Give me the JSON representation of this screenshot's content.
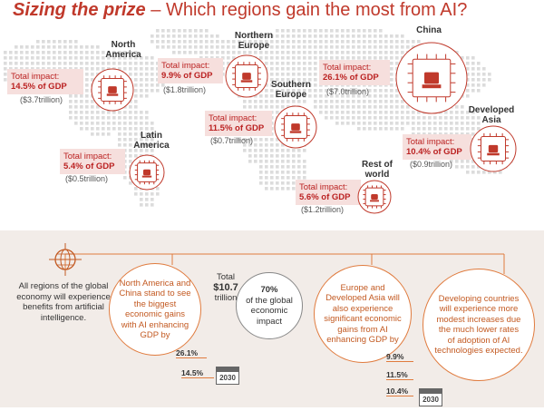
{
  "title": {
    "bold": "Sizing the prize",
    "dash": " – ",
    "rest": "Which regions gain the most from AI?"
  },
  "regions": {
    "north_america": {
      "name": "North America",
      "impact_label": "Total impact:",
      "pct": "14.5% of GDP",
      "trillion": "($3.7trillion)"
    },
    "northern_europe": {
      "name": "Northern Europe",
      "impact_label": "Total impact:",
      "pct": "9.9% of GDP",
      "trillion": "($1.8trillion)"
    },
    "southern_europe": {
      "name": "Southern Europe",
      "impact_label": "Total impact:",
      "pct": "11.5% of GDP",
      "trillion": "($0.7trillion)"
    },
    "china": {
      "name": "China",
      "impact_label": "Total impact:",
      "pct": "26.1% of GDP",
      "trillion": "($7.0trillion)"
    },
    "developed_asia": {
      "name": "Developed Asia",
      "impact_label": "Total impact:",
      "pct": "10.4% of GDP",
      "trillion": "($0.9trillion)"
    },
    "latin_america": {
      "name": "Latin America",
      "impact_label": "Total impact:",
      "pct": "5.4% of GDP",
      "trillion": "($0.5trillion)"
    },
    "rest_of_world": {
      "name": "Rest of world",
      "impact_label": "Total impact:",
      "pct": "5.6% of GDP",
      "trillion": "($1.2trillion)"
    }
  },
  "summary": {
    "all_regions": "All regions of the global economy will experience benefits from artificial intelligence.",
    "na_china": "North America and China stand to see the biggest economic gains with AI enhancing GDP by",
    "total_label": "Total",
    "total_value": "$10.7",
    "total_unit": "trillion",
    "pct70": "70%",
    "pct70_text": "of the global economic impact",
    "europe_asia": "Europe and Developed Asia will also experience significant economic gains from AI enhancing GDP by",
    "developing": "Developing countries will experience more modest increases due the much lower rates of adoption of AI technologies expected.",
    "na_china_pcts": [
      "26.1%",
      "14.5%"
    ],
    "europe_asia_pcts": [
      "9.9%",
      "11.5%",
      "10.4%"
    ],
    "year": "2030"
  },
  "colors": {
    "accent": "#c0392b",
    "orange": "#e07b3e",
    "map_dot": "#dcdcdc",
    "bottom_bg": "#f2ece8"
  }
}
